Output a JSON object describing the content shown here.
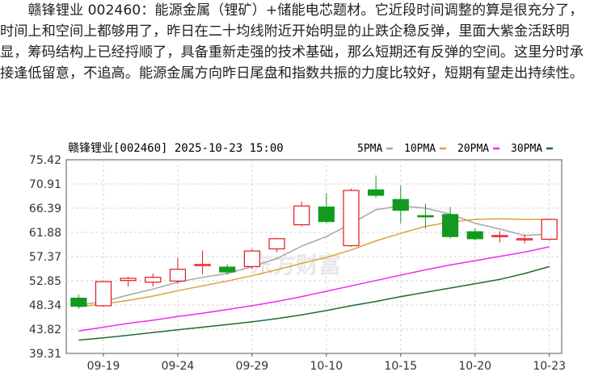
{
  "article": {
    "text": "赣锋锂业 002460：能源金属（锂矿）+储能电芯题材。它近段时间调整的算是很充分了，时间上和空间上都够用了，昨日在二十均线附近开始明显的止跌企稳反弹，里面大紫金活跃明显，筹码结构上已经捋顺了，具备重新走强的技术基础，那么短期还有反弹的空间。这里分时承接逢低留意，不追高。能源金属方向昨日尾盘和指数共振的力度比较好，短期有望走出持续性。"
  },
  "chart": {
    "header": "赣锋锂业[002460] 2025-10-23 15:00",
    "watermark": "东方财富",
    "colors": {
      "up": "#e8141c",
      "down": "#129a1e",
      "ma5": "#a6a6a6",
      "ma10": "#e0a13b",
      "ma20": "#ee2bee",
      "ma30": "#1b6e2e",
      "grid": "#d6d6d6",
      "axis": "#555555"
    }
  },
  "chart_data": {
    "type": "candlestick",
    "title": "赣锋锂业[002460] 2025-10-23 15:00",
    "ylim": [
      39.31,
      75.42
    ],
    "yticks": [
      "75.42",
      "70.91",
      "66.39",
      "61.88",
      "57.37",
      "52.85",
      "48.34",
      "43.82",
      "39.31"
    ],
    "xticks": [
      {
        "index": 1,
        "label": "09-19"
      },
      {
        "index": 4,
        "label": "09-24"
      },
      {
        "index": 7,
        "label": "09-29"
      },
      {
        "index": 10,
        "label": "10-10"
      },
      {
        "index": 13,
        "label": "10-15"
      },
      {
        "index": 16,
        "label": "10-20"
      },
      {
        "index": 19,
        "label": "10-23"
      }
    ],
    "candles": [
      {
        "o": 49.6,
        "h": 50.3,
        "l": 47.6,
        "c": 48.1
      },
      {
        "o": 48.2,
        "h": 52.9,
        "l": 48.0,
        "c": 52.7
      },
      {
        "o": 52.9,
        "h": 53.6,
        "l": 51.8,
        "c": 53.3
      },
      {
        "o": 52.6,
        "h": 54.2,
        "l": 51.8,
        "c": 53.5
      },
      {
        "o": 52.8,
        "h": 57.1,
        "l": 52.3,
        "c": 55.0
      },
      {
        "o": 55.8,
        "h": 58.5,
        "l": 54.1,
        "c": 55.9
      },
      {
        "o": 55.4,
        "h": 55.9,
        "l": 54.0,
        "c": 54.5
      },
      {
        "o": 55.5,
        "h": 58.8,
        "l": 55.0,
        "c": 58.4
      },
      {
        "o": 58.8,
        "h": 60.8,
        "l": 58.2,
        "c": 60.7
      },
      {
        "o": 63.3,
        "h": 67.6,
        "l": 63.0,
        "c": 66.8
      },
      {
        "o": 66.6,
        "h": 69.2,
        "l": 63.6,
        "c": 63.9
      },
      {
        "o": 59.4,
        "h": 70.0,
        "l": 59.2,
        "c": 69.7
      },
      {
        "o": 69.8,
        "h": 72.5,
        "l": 68.3,
        "c": 68.8
      },
      {
        "o": 68.0,
        "h": 70.6,
        "l": 63.6,
        "c": 66.0
      },
      {
        "o": 65.0,
        "h": 67.2,
        "l": 62.5,
        "c": 64.9
      },
      {
        "o": 65.2,
        "h": 66.6,
        "l": 60.7,
        "c": 61.1
      },
      {
        "o": 62.0,
        "h": 62.6,
        "l": 60.4,
        "c": 60.7
      },
      {
        "o": 61.2,
        "h": 62.1,
        "l": 60.0,
        "c": 61.3
      },
      {
        "o": 60.6,
        "h": 61.5,
        "l": 59.8,
        "c": 60.7
      },
      {
        "o": 60.6,
        "h": 64.4,
        "l": 60.3,
        "c": 64.3
      }
    ],
    "series": [
      {
        "name": "5PMA",
        "values": [
          48.3,
          49.0,
          50.2,
          51.3,
          52.6,
          53.5,
          54.2,
          55.5,
          57.0,
          59.3,
          61.1,
          63.5,
          66.1,
          66.8,
          66.4,
          65.3,
          63.6,
          62.5,
          61.3,
          61.6
        ]
      },
      {
        "name": "10PMA",
        "values": [
          48.0,
          48.5,
          49.2,
          50.0,
          51.0,
          51.9,
          52.8,
          53.8,
          54.9,
          56.1,
          57.2,
          58.6,
          60.3,
          61.7,
          63.0,
          63.8,
          64.3,
          64.4,
          64.3,
          64.3
        ]
      },
      {
        "name": "20PMA",
        "values": [
          43.5,
          44.2,
          44.9,
          45.5,
          46.2,
          46.8,
          47.5,
          48.2,
          49.0,
          49.9,
          50.9,
          51.9,
          52.9,
          53.9,
          54.9,
          55.8,
          56.6,
          57.4,
          58.2,
          59.2
        ]
      },
      {
        "name": "30PMA",
        "values": [
          41.8,
          42.2,
          42.7,
          43.2,
          43.7,
          44.2,
          44.7,
          45.2,
          45.8,
          46.5,
          47.3,
          48.2,
          49.0,
          49.9,
          50.7,
          51.5,
          52.3,
          53.1,
          54.2,
          55.5
        ]
      }
    ]
  }
}
